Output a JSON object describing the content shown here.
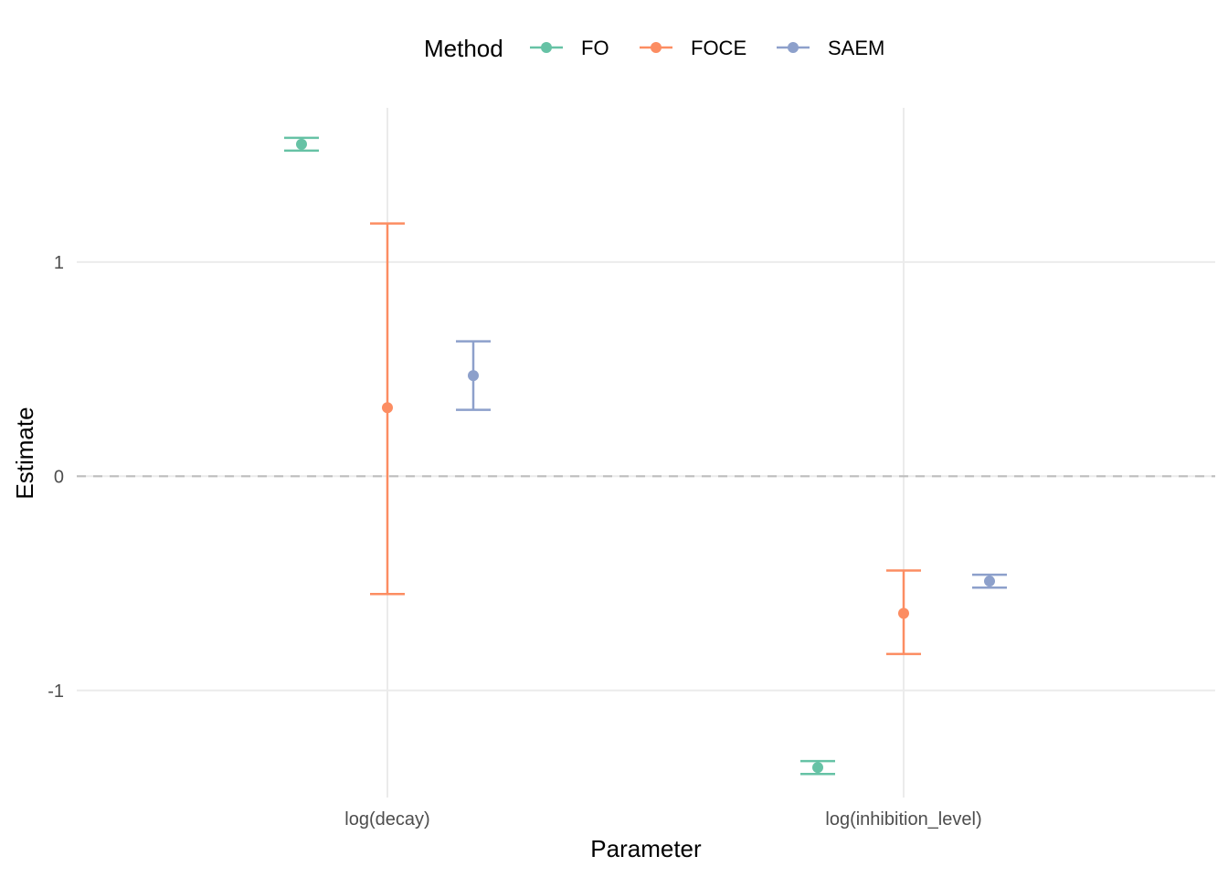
{
  "chart_data": {
    "type": "errorbar",
    "xlabel": "Parameter",
    "ylabel": "Estimate",
    "categories": [
      "log(decay)",
      "log(inhibition_level)"
    ],
    "y_ticks": [
      "-1",
      "0",
      "1"
    ],
    "ylim": [
      -1.5,
      1.72
    ],
    "reference_line": {
      "y": 0,
      "style": "dashed"
    },
    "grid": true,
    "legend": {
      "title": "Method",
      "position": "top"
    },
    "series": [
      {
        "name": "FO",
        "color": "#66C2A5",
        "points": [
          {
            "category": "log(decay)",
            "estimate": 1.55,
            "lower": 1.52,
            "upper": 1.58
          },
          {
            "category": "log(inhibition_level)",
            "estimate": -1.36,
            "lower": -1.39,
            "upper": -1.33
          }
        ]
      },
      {
        "name": "FOCE",
        "color": "#FC8D62",
        "points": [
          {
            "category": "log(decay)",
            "estimate": 0.32,
            "lower": -0.55,
            "upper": 1.18
          },
          {
            "category": "log(inhibition_level)",
            "estimate": -0.64,
            "lower": -0.83,
            "upper": -0.44
          }
        ]
      },
      {
        "name": "SAEM",
        "color": "#8DA0CB",
        "points": [
          {
            "category": "log(decay)",
            "estimate": 0.47,
            "lower": 0.31,
            "upper": 0.63
          },
          {
            "category": "log(inhibition_level)",
            "estimate": -0.49,
            "lower": -0.52,
            "upper": -0.46
          }
        ]
      }
    ]
  }
}
